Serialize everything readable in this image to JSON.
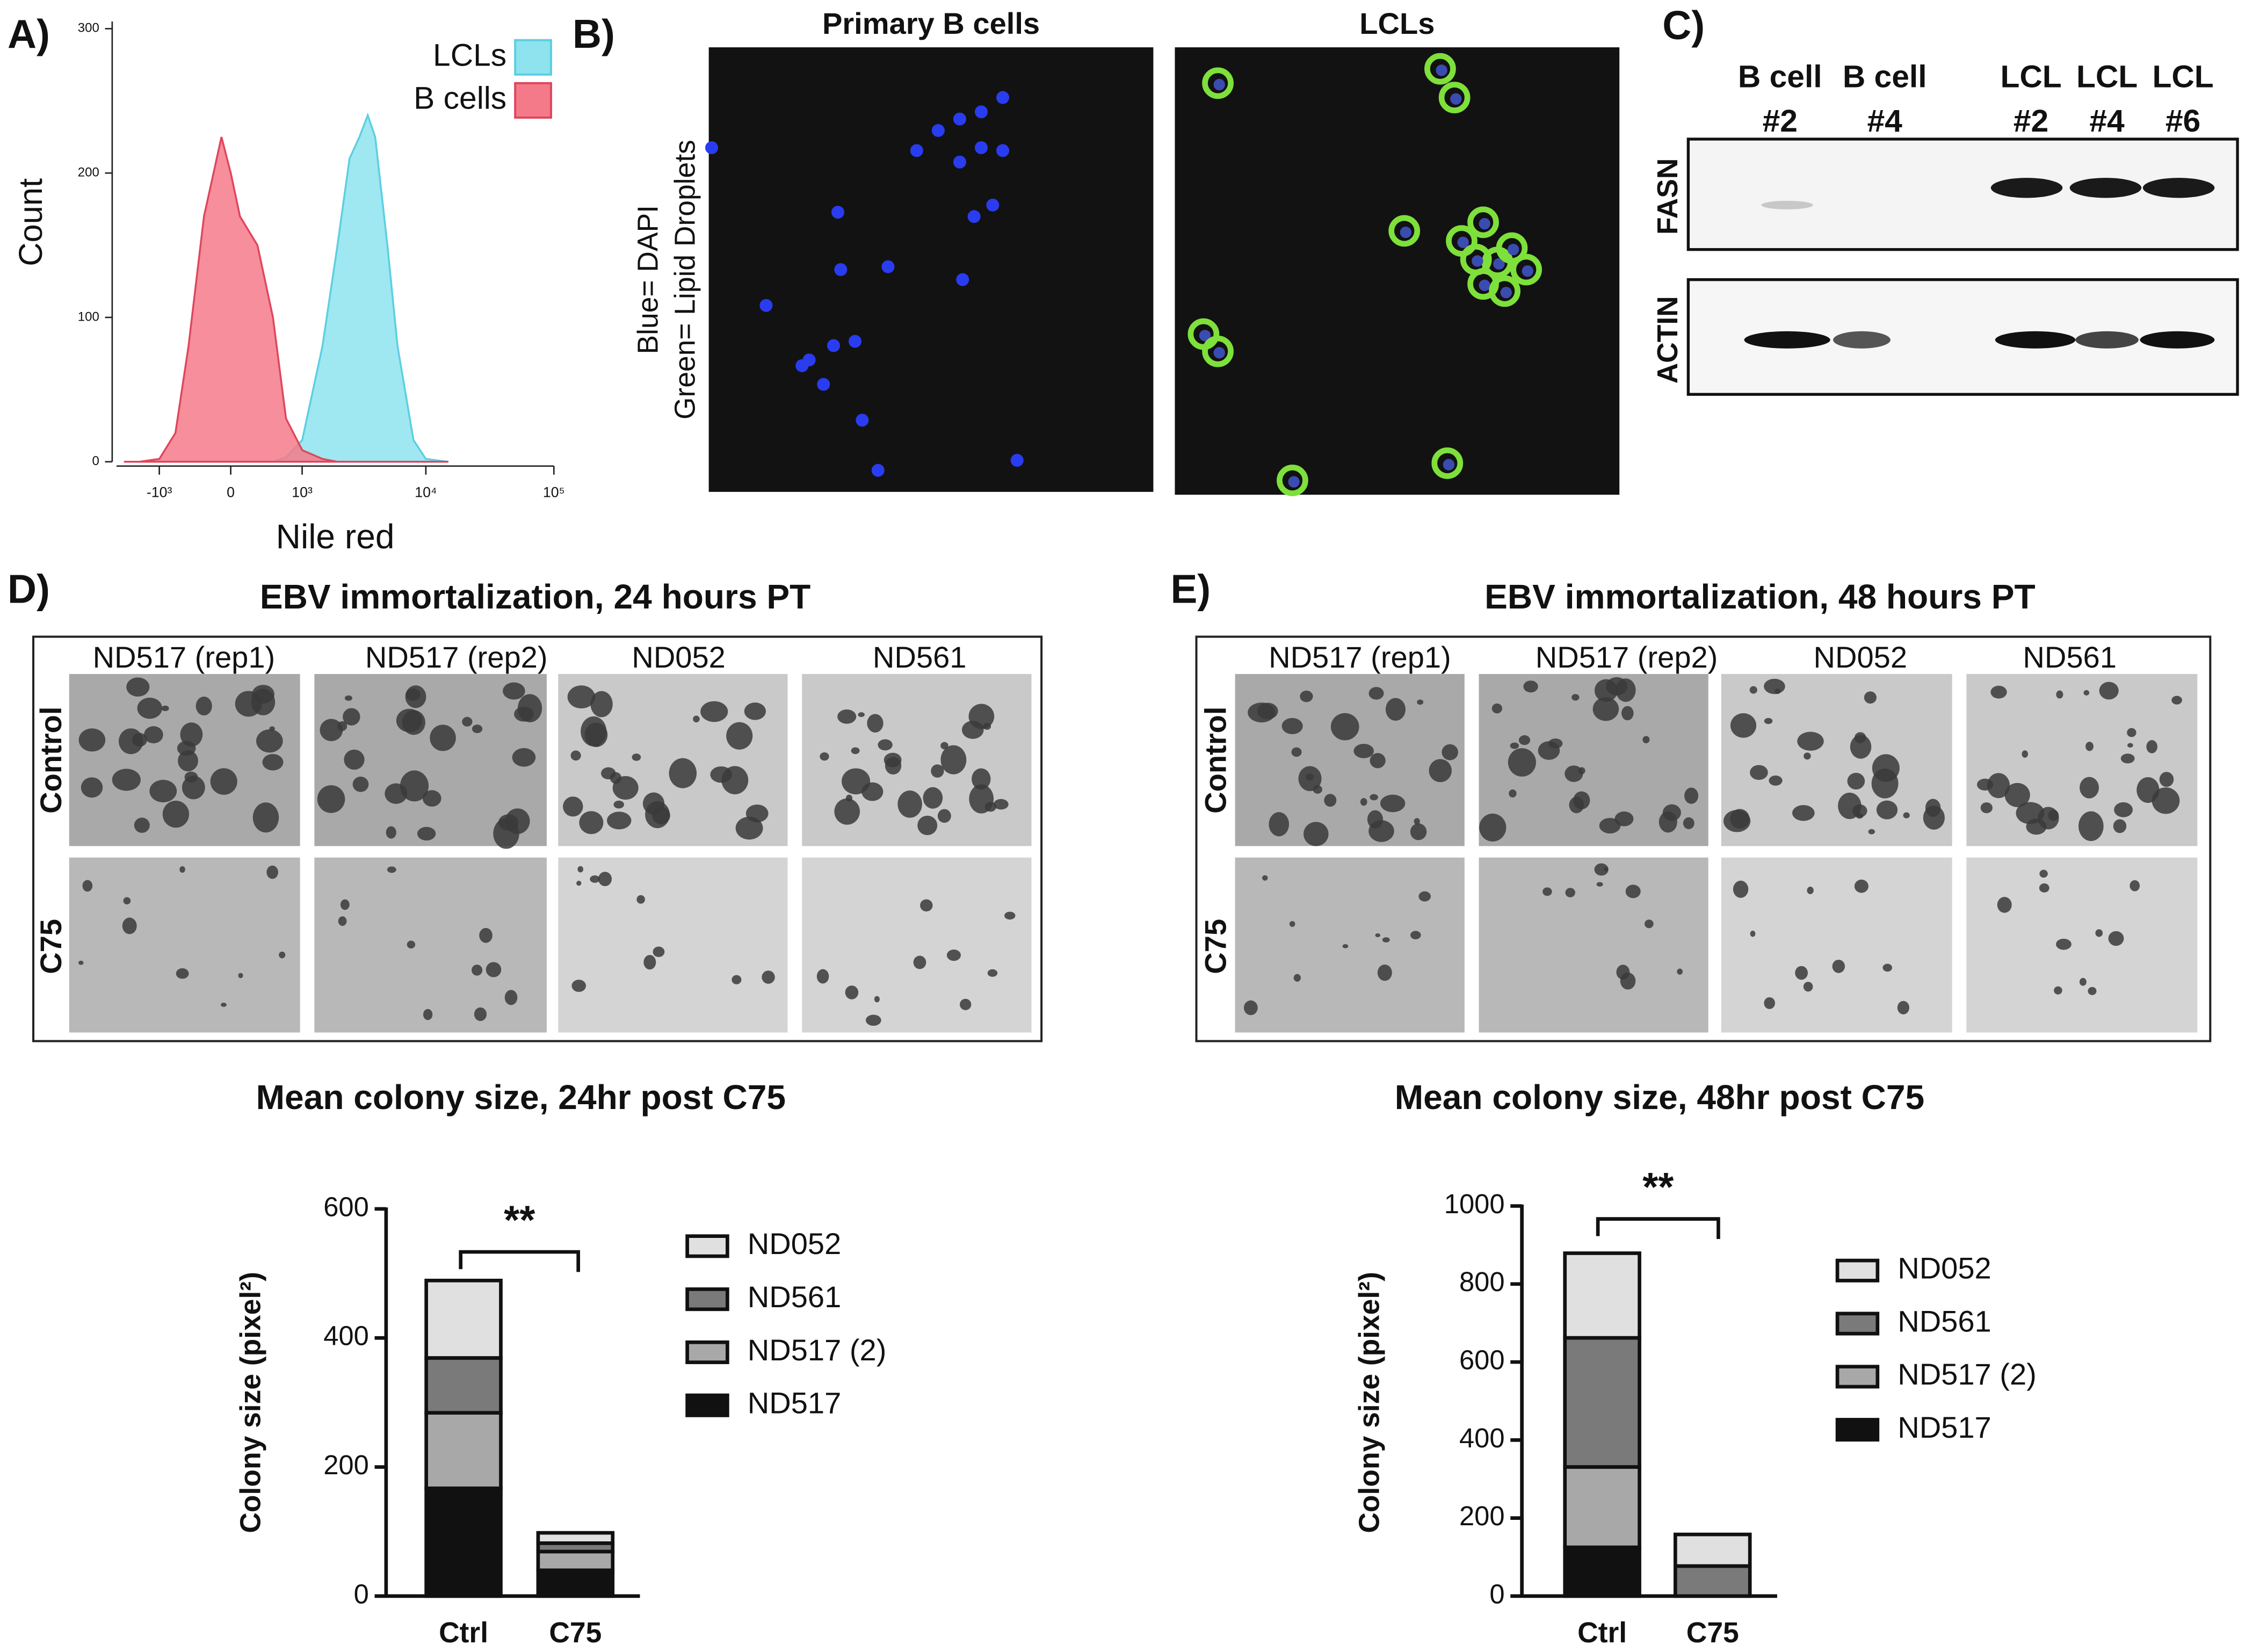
{
  "chart_data": [
    {
      "type": "area",
      "xlabel": "Nile red",
      "ylabel": "Count",
      "xscale": "biexponential",
      "xlim": [
        -2300,
        100000
      ],
      "ylim": [
        0,
        300
      ],
      "yticks": [
        0,
        100,
        200,
        300
      ],
      "xticks": [
        {
          "value": -1000,
          "label": "-10³"
        },
        0,
        {
          "value": 1000,
          "label": "10³"
        },
        {
          "value": 10000,
          "label": "10⁴"
        },
        {
          "value": 100000,
          "label": "10⁵"
        }
      ],
      "legend": "upper right",
      "x": [
        -2000,
        -1500,
        -1000,
        -700,
        -500,
        -300,
        -100,
        0,
        100,
        300,
        500,
        700,
        1000,
        1500,
        2000,
        2500,
        3000,
        3500,
        4000,
        5000,
        6000,
        8000,
        10000,
        15000
      ],
      "series": [
        {
          "name": "LCLs",
          "color": "#8ee3ef",
          "values": [
            0,
            0,
            0,
            0,
            0,
            0,
            0,
            0,
            0,
            0,
            0,
            3,
            15,
            80,
            150,
            210,
            225,
            240,
            225,
            150,
            80,
            15,
            2,
            0
          ]
        },
        {
          "name": "B cells",
          "color": "#f47a8a",
          "values": [
            0,
            0,
            2,
            20,
            80,
            170,
            225,
            200,
            170,
            150,
            100,
            30,
            8,
            2,
            0,
            0,
            0,
            0,
            0,
            0,
            0,
            0,
            0,
            0
          ]
        }
      ]
    },
    {
      "type": "stacked_bar",
      "title": "Mean colony size, 24hr post C75",
      "ylabel": "Colony size (pixel²)",
      "categories": [
        "Ctrl",
        "C75"
      ],
      "ylim": [
        0,
        600
      ],
      "yticks": [
        0,
        200,
        400,
        600
      ],
      "legend": "right",
      "annotation": "**",
      "series": [
        {
          "name": "ND517",
          "color": "#111111",
          "values": [
            167,
            40
          ]
        },
        {
          "name": "ND517 (2)",
          "color": "#a8a8a8",
          "values": [
            117,
            29
          ]
        },
        {
          "name": "ND561",
          "color": "#7a7a7a",
          "values": [
            85,
            13
          ]
        },
        {
          "name": "ND052",
          "color": "#e0e0e0",
          "values": [
            120,
            16
          ]
        }
      ]
    },
    {
      "type": "stacked_bar",
      "title": "Mean colony size, 48hr post C75",
      "ylabel": "Colony size (pixel²)",
      "categories": [
        "Ctrl",
        "C75"
      ],
      "ylim": [
        0,
        1000
      ],
      "yticks": [
        0,
        200,
        400,
        600,
        800,
        1000
      ],
      "legend": "right",
      "annotation": "**",
      "series": [
        {
          "name": "ND517",
          "color": "#111111",
          "values": [
            125,
            0
          ]
        },
        {
          "name": "ND517 (2)",
          "color": "#a8a8a8",
          "values": [
            206,
            0
          ]
        },
        {
          "name": "ND561",
          "color": "#7a7a7a",
          "values": [
            331,
            77
          ]
        },
        {
          "name": "ND052",
          "color": "#e0e0e0",
          "values": [
            217,
            81
          ]
        }
      ]
    }
  ],
  "panels": {
    "A": {
      "label": "A)"
    },
    "B": {
      "label": "B)",
      "titles": [
        "Primary B cells",
        "LCLs"
      ],
      "legend": [
        "Blue= DAPI",
        "Green= Lipid Droplets"
      ]
    },
    "C": {
      "label": "C)",
      "lanes": [
        [
          "B cell",
          "#2"
        ],
        [
          "B cell",
          "#4"
        ],
        [
          "LCL",
          "#2"
        ],
        [
          "LCL",
          "#4"
        ],
        [
          "LCL",
          "#6"
        ]
      ],
      "blots": [
        "FASN",
        "ACTIN"
      ]
    },
    "D": {
      "label": "D)",
      "title": "EBV immortalization, 24 hours PT",
      "columns": [
        "ND517 (rep1)",
        "ND517 (rep2)",
        "ND052",
        "ND561"
      ],
      "rows": [
        "Control",
        "C75"
      ]
    },
    "E": {
      "label": "E)",
      "title": "EBV immortalization, 48 hours PT",
      "columns": [
        "ND517 (rep1)",
        "ND517 (rep2)",
        "ND052",
        "ND561"
      ],
      "rows": [
        "Control",
        "C75"
      ]
    }
  }
}
